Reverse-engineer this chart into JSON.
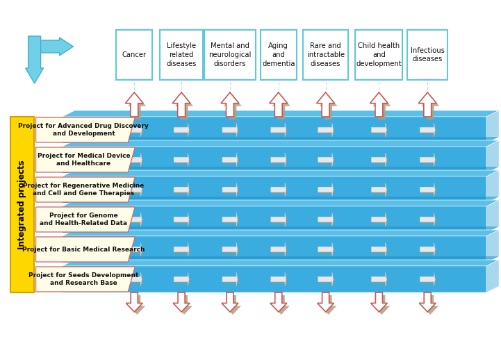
{
  "disease_categories": [
    "Cancer",
    "Lifestyle\nrelated\ndiseases",
    "Mental and\nneurological\ndisorders",
    "Aging\nand\ndementia",
    "Rare and\nintractable\ndiseases",
    "Child health\nand\ndevelopment",
    "Infectious\ndiseases"
  ],
  "projects": [
    "Project for Advanced Drug Discovery\nand Development",
    "Project for Medical Device\nand Healthcare",
    "Project for Regenerative Medicine\nand Cell and Gene Therapies",
    "Project for Genome\nand Health-Related Data",
    "Project for Basic Medical Research",
    "Project for Seeds Development\nand Research Base"
  ],
  "yellow_label": "Integrated projects",
  "bg_color": "#FFFFFF",
  "blue_top": "#5BBFE8",
  "blue_front": "#3AACE0",
  "blue_side": "#A8D8EE",
  "blue_gap": "#1E90C8",
  "box_bg": "#FFFCE8",
  "box_border": "#CC6666",
  "header_border": "#60C8D8",
  "yellow_bg": "#FFD700",
  "yellow_border": "#D4A000",
  "arrow_white": "#FFFFFF",
  "arrow_shadow": "#B0A080",
  "arrow_red_edge": "#CC5555",
  "cyan_arrow": "#70D0E8",
  "cyan_border": "#40B0C8"
}
